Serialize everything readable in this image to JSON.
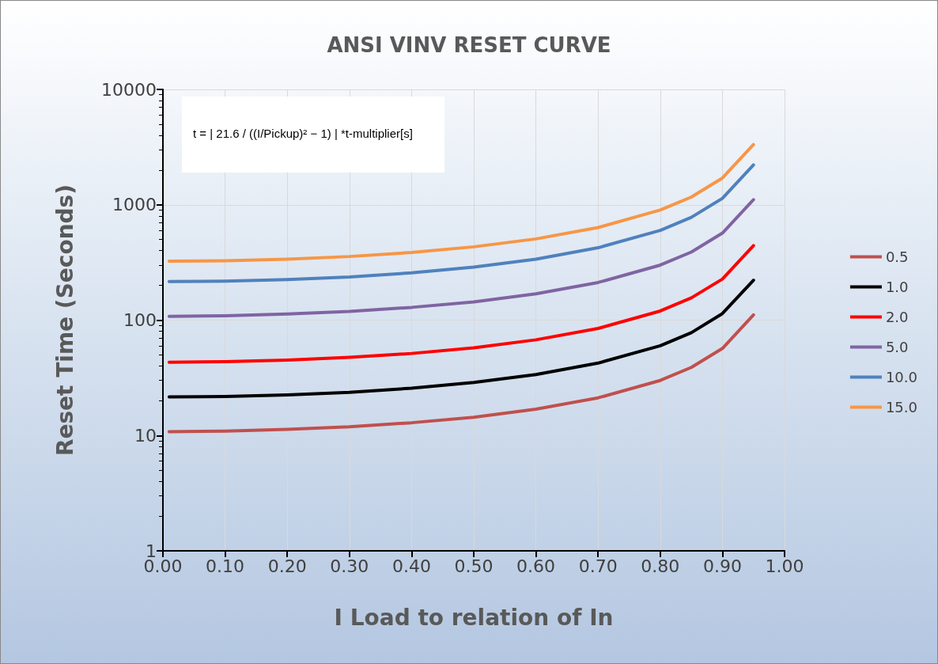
{
  "chart_data": {
    "type": "line",
    "title": "ANSI VINV RESET CURVE",
    "xlabel": "I Load to relation of In",
    "ylabel": "Reset Time (Seconds)",
    "annotations": [
      "t = | 21.6 / ((I/Pickup)² − 1) | *t-multiplier[s]"
    ],
    "x": [
      0.01,
      0.1,
      0.2,
      0.3,
      0.4,
      0.5,
      0.6,
      0.7,
      0.8,
      0.85,
      0.9,
      0.95
    ],
    "series": [
      {
        "name": "0.5",
        "color": "#c0504d",
        "values": [
          10.8,
          10.9,
          11.3,
          11.9,
          12.9,
          14.4,
          16.9,
          21.2,
          30.0,
          38.9,
          56.8,
          111
        ]
      },
      {
        "name": "1.0",
        "color": "#000000",
        "values": [
          21.6,
          21.8,
          22.5,
          23.7,
          25.7,
          28.8,
          33.8,
          42.4,
          60.0,
          77.8,
          114,
          222
        ]
      },
      {
        "name": "2.0",
        "color": "#ff0000",
        "values": [
          43.2,
          43.6,
          45.0,
          47.5,
          51.4,
          57.6,
          67.5,
          84.7,
          120,
          156,
          227,
          443
        ]
      },
      {
        "name": "5.0",
        "color": "#8064a2",
        "values": [
          108,
          109,
          113,
          119,
          129,
          144,
          169,
          212,
          300,
          389,
          568,
          1108
        ]
      },
      {
        "name": "10.0",
        "color": "#4f81bd",
        "values": [
          216,
          218,
          225,
          237,
          257,
          288,
          338,
          424,
          600,
          778,
          1137,
          2215
        ]
      },
      {
        "name": "15.0",
        "color": "#f79646",
        "values": [
          324,
          327,
          338,
          356,
          386,
          432,
          506,
          635,
          900,
          1167,
          1705,
          3323
        ]
      }
    ],
    "log": "y",
    "xlim": [
      0,
      1
    ],
    "ylim": [
      1,
      10000
    ],
    "xticks": [
      {
        "value": 0,
        "label": "0.00"
      },
      {
        "value": 0.1,
        "label": "0.10"
      },
      {
        "value": 0.2,
        "label": "0.20"
      },
      {
        "value": 0.3,
        "label": "0.30"
      },
      {
        "value": 0.4,
        "label": "0.40"
      },
      {
        "value": 0.5,
        "label": "0.50"
      },
      {
        "value": 0.6,
        "label": "0.60"
      },
      {
        "value": 0.7,
        "label": "0.70"
      },
      {
        "value": 0.8,
        "label": "0.80"
      },
      {
        "value": 0.9,
        "label": "0.90"
      },
      {
        "value": 1,
        "label": "1.00"
      }
    ],
    "yticks": [
      1,
      10,
      100,
      1000,
      10000
    ],
    "grid": true,
    "legend": "right",
    "marker": "none",
    "line_style": "solid"
  }
}
